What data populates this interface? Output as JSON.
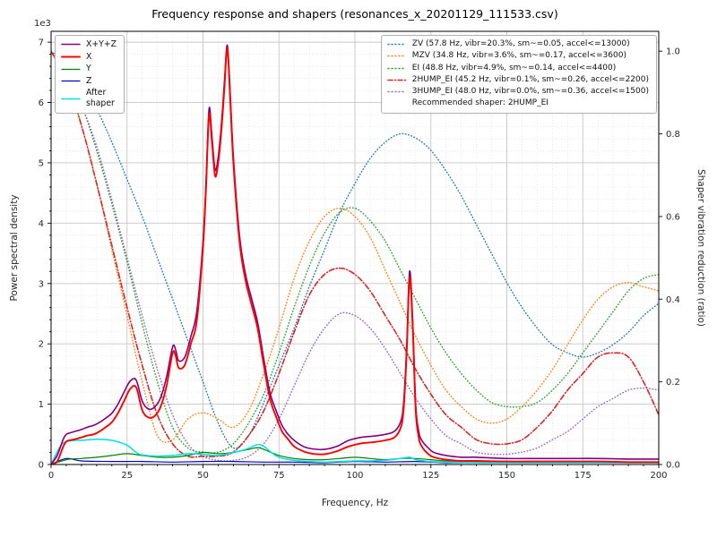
{
  "chart_data": {
    "type": "line",
    "title": "Frequency response and shapers (resonances_x_20201129_111533.csv)",
    "xlabel": "Frequency, Hz",
    "ylabel": "Power spectral density",
    "ylabel2": "Shaper vibration reduction (ratio)",
    "y_offset_text": "1e3",
    "xlim": [
      0,
      200
    ],
    "psd_top": 7.18,
    "ratio_top": 1.048,
    "x_ticks": [
      0,
      25,
      50,
      75,
      100,
      125,
      150,
      175,
      200
    ],
    "y_ticks_left": [
      0,
      1,
      2,
      3,
      4,
      5,
      6,
      7
    ],
    "y_ticks_right": [
      "0.0",
      "0.2",
      "0.4",
      "0.6",
      "0.8",
      "1.0"
    ],
    "grid": "both",
    "legend_positions": {
      "psd": "upper left",
      "shapers": "upper right"
    },
    "recommended": "Recommended shaper: 2HUMP_EI",
    "draw_order": [
      "zv",
      "mzv",
      "ei",
      "hump3",
      "hump2",
      "z",
      "y",
      "after",
      "total",
      "x"
    ],
    "series": {
      "total": {
        "label": "X+Y+Z",
        "color": "#800080",
        "style": "solid",
        "width": 1.6,
        "axis": "psd",
        "x": [
          0,
          2,
          4,
          5,
          6,
          8,
          10,
          12,
          14,
          16,
          18,
          20,
          22,
          24,
          26,
          28,
          30,
          32,
          34,
          36,
          38,
          40,
          41,
          42,
          44,
          46,
          48,
          50,
          51,
          52,
          53,
          54,
          55,
          56,
          57,
          58,
          59,
          60,
          62,
          64,
          66,
          68,
          70,
          72,
          74,
          76,
          78,
          80,
          83,
          86,
          90,
          94,
          98,
          102,
          106,
          110,
          113,
          115,
          116,
          117,
          118,
          119,
          120,
          121,
          122,
          124,
          126,
          130,
          135,
          140,
          150,
          160,
          170,
          180,
          190,
          200
        ],
        "y": [
          0,
          0.15,
          0.42,
          0.5,
          0.52,
          0.55,
          0.58,
          0.62,
          0.65,
          0.7,
          0.77,
          0.85,
          1.0,
          1.2,
          1.38,
          1.4,
          1.05,
          0.92,
          0.95,
          1.1,
          1.45,
          1.95,
          1.9,
          1.72,
          1.78,
          2.12,
          2.55,
          3.7,
          4.7,
          5.9,
          5.4,
          4.88,
          5.1,
          5.6,
          6.3,
          6.95,
          6.1,
          5.1,
          3.8,
          3.15,
          2.75,
          2.35,
          1.75,
          1.2,
          0.9,
          0.65,
          0.5,
          0.4,
          0.3,
          0.26,
          0.25,
          0.3,
          0.4,
          0.45,
          0.47,
          0.5,
          0.55,
          0.7,
          1.0,
          1.9,
          3.2,
          2.4,
          1.0,
          0.55,
          0.4,
          0.28,
          0.2,
          0.15,
          0.12,
          0.12,
          0.1,
          0.1,
          0.1,
          0.1,
          0.09,
          0.09
        ]
      },
      "x": {
        "label": "X",
        "color": "#ff0000",
        "style": "solid",
        "width": 1.9,
        "axis": "psd",
        "x": [
          0,
          2,
          4,
          5,
          6,
          8,
          10,
          12,
          14,
          16,
          18,
          20,
          22,
          24,
          26,
          28,
          30,
          32,
          34,
          36,
          38,
          40,
          41,
          42,
          44,
          46,
          48,
          50,
          51,
          52,
          53,
          54,
          55,
          56,
          57,
          58,
          59,
          60,
          62,
          64,
          66,
          68,
          70,
          72,
          74,
          76,
          78,
          80,
          83,
          86,
          90,
          94,
          98,
          102,
          106,
          110,
          113,
          115,
          116,
          117,
          118,
          119,
          120,
          121,
          122,
          124,
          126,
          130,
          135,
          140,
          150,
          160,
          170,
          180,
          190,
          200
        ],
        "y": [
          0,
          0.05,
          0.3,
          0.38,
          0.4,
          0.42,
          0.45,
          0.48,
          0.5,
          0.55,
          0.62,
          0.7,
          0.85,
          1.05,
          1.25,
          1.28,
          0.9,
          0.78,
          0.8,
          0.95,
          1.3,
          1.85,
          1.8,
          1.6,
          1.65,
          2.0,
          2.4,
          3.6,
          4.6,
          5.8,
          5.3,
          4.78,
          5.0,
          5.5,
          6.2,
          6.9,
          6.0,
          5.0,
          3.7,
          3.05,
          2.65,
          2.25,
          1.65,
          1.1,
          0.8,
          0.55,
          0.42,
          0.3,
          0.22,
          0.18,
          0.17,
          0.22,
          0.3,
          0.35,
          0.37,
          0.4,
          0.45,
          0.6,
          0.9,
          1.8,
          3.1,
          2.3,
          0.9,
          0.45,
          0.3,
          0.18,
          0.12,
          0.08,
          0.06,
          0.06,
          0.05,
          0.05,
          0.05,
          0.05,
          0.04,
          0.04
        ]
      },
      "y": {
        "label": "Y",
        "color": "#008000",
        "style": "solid",
        "width": 1.2,
        "axis": "psd",
        "x": [
          0,
          5,
          10,
          15,
          20,
          25,
          30,
          35,
          40,
          45,
          50,
          55,
          60,
          65,
          68,
          70,
          75,
          80,
          85,
          90,
          95,
          100,
          105,
          110,
          115,
          120,
          125,
          130,
          140,
          150,
          160,
          170,
          180,
          190,
          200
        ],
        "y": [
          0,
          0.08,
          0.1,
          0.12,
          0.15,
          0.18,
          0.15,
          0.12,
          0.12,
          0.15,
          0.2,
          0.18,
          0.2,
          0.25,
          0.28,
          0.25,
          0.15,
          0.1,
          0.08,
          0.08,
          0.1,
          0.12,
          0.1,
          0.08,
          0.1,
          0.1,
          0.08,
          0.06,
          0.05,
          0.05,
          0.04,
          0.04,
          0.04,
          0.03,
          0.03
        ]
      },
      "z": {
        "label": "Z",
        "color": "#0000cc",
        "style": "solid",
        "width": 1.2,
        "axis": "psd",
        "x": [
          0,
          5,
          10,
          20,
          30,
          40,
          50,
          60,
          70,
          80,
          90,
          100,
          110,
          120,
          130,
          140,
          150,
          160,
          170,
          180,
          190,
          200
        ],
        "y": [
          0,
          0.1,
          0.06,
          0.05,
          0.05,
          0.04,
          0.05,
          0.05,
          0.04,
          0.04,
          0.03,
          0.05,
          0.04,
          0.05,
          0.03,
          0.03,
          0.03,
          0.03,
          0.03,
          0.03,
          0.03,
          0.03
        ]
      },
      "after": {
        "label": "After\nshaper",
        "color": "#00e0e0",
        "style": "solid",
        "width": 1.5,
        "axis": "psd",
        "x": [
          0,
          3,
          5,
          8,
          10,
          15,
          20,
          25,
          28,
          30,
          35,
          40,
          45,
          50,
          55,
          60,
          64,
          68,
          70,
          72,
          75,
          80,
          85,
          90,
          95,
          100,
          105,
          110,
          115,
          118,
          120,
          125,
          130,
          140,
          150,
          160,
          170,
          180,
          190,
          200
        ],
        "y": [
          0,
          0.3,
          0.38,
          0.4,
          0.4,
          0.42,
          0.4,
          0.32,
          0.2,
          0.16,
          0.14,
          0.15,
          0.18,
          0.17,
          0.15,
          0.2,
          0.25,
          0.33,
          0.3,
          0.22,
          0.12,
          0.07,
          0.05,
          0.04,
          0.05,
          0.06,
          0.06,
          0.07,
          0.1,
          0.12,
          0.08,
          0.05,
          0.04,
          0.03,
          0.03,
          0.03,
          0.03,
          0.03,
          0.03,
          0.03
        ]
      },
      "zv": {
        "label": "ZV (57.8 Hz, vibr=20.3%, sm~=0.05, accel<=13000)",
        "color": "#1f77b4",
        "style": "dotted",
        "width": 1.4,
        "axis": "ratio",
        "x": [
          0,
          5,
          10,
          15,
          20,
          25,
          30,
          35,
          40,
          45,
          50,
          55,
          60,
          65,
          70,
          75,
          80,
          85,
          90,
          95,
          100,
          105,
          110,
          115,
          120,
          125,
          130,
          135,
          140,
          145,
          150,
          155,
          160,
          165,
          170,
          175,
          180,
          185,
          190,
          195,
          200
        ],
        "y": [
          1.0,
          0.97,
          0.92,
          0.86,
          0.78,
          0.69,
          0.6,
          0.5,
          0.4,
          0.3,
          0.2,
          0.1,
          0.04,
          0.07,
          0.15,
          0.24,
          0.33,
          0.43,
          0.52,
          0.61,
          0.68,
          0.74,
          0.78,
          0.8,
          0.79,
          0.76,
          0.71,
          0.65,
          0.58,
          0.51,
          0.44,
          0.38,
          0.33,
          0.29,
          0.27,
          0.26,
          0.27,
          0.29,
          0.32,
          0.36,
          0.39
        ]
      },
      "mzv": {
        "label": "MZV (34.8 Hz, vibr=3.6%, sm~=0.17, accel<=3600)",
        "color": "#ff7f0e",
        "style": "dotted",
        "width": 1.4,
        "axis": "ratio",
        "x": [
          0,
          5,
          10,
          15,
          20,
          25,
          30,
          35,
          40,
          45,
          50,
          55,
          60,
          65,
          70,
          75,
          80,
          85,
          90,
          95,
          100,
          105,
          110,
          115,
          120,
          125,
          130,
          135,
          140,
          145,
          150,
          155,
          160,
          165,
          170,
          175,
          180,
          185,
          190,
          195,
          200
        ],
        "y": [
          1.0,
          0.93,
          0.82,
          0.68,
          0.52,
          0.36,
          0.2,
          0.07,
          0.06,
          0.11,
          0.125,
          0.11,
          0.09,
          0.13,
          0.22,
          0.33,
          0.45,
          0.54,
          0.6,
          0.62,
          0.6,
          0.55,
          0.47,
          0.39,
          0.31,
          0.24,
          0.18,
          0.14,
          0.11,
          0.1,
          0.11,
          0.14,
          0.18,
          0.23,
          0.29,
          0.35,
          0.4,
          0.43,
          0.44,
          0.43,
          0.42
        ]
      },
      "ei": {
        "label": "EI (48.8 Hz, vibr=4.9%, sm~=0.14, accel<=4400)",
        "color": "#2ca02c",
        "style": "dotted",
        "width": 1.4,
        "axis": "ratio",
        "x": [
          0,
          5,
          10,
          15,
          20,
          25,
          30,
          35,
          40,
          45,
          50,
          55,
          60,
          65,
          70,
          75,
          80,
          85,
          90,
          95,
          100,
          105,
          110,
          115,
          120,
          125,
          130,
          135,
          140,
          145,
          150,
          155,
          160,
          165,
          170,
          175,
          180,
          185,
          190,
          195,
          200
        ],
        "y": [
          1.0,
          0.95,
          0.87,
          0.76,
          0.63,
          0.49,
          0.34,
          0.2,
          0.09,
          0.04,
          0.03,
          0.03,
          0.05,
          0.1,
          0.17,
          0.27,
          0.38,
          0.48,
          0.56,
          0.61,
          0.62,
          0.59,
          0.54,
          0.47,
          0.4,
          0.33,
          0.27,
          0.22,
          0.18,
          0.15,
          0.14,
          0.14,
          0.15,
          0.18,
          0.22,
          0.27,
          0.32,
          0.37,
          0.42,
          0.45,
          0.46
        ]
      },
      "hump2": {
        "label": "2HUMP_EI (45.2 Hz, vibr=0.1%, sm~=0.26, accel<=2200)",
        "color": "#d62728",
        "style": "dashdot",
        "width": 1.6,
        "axis": "ratio",
        "x": [
          0,
          5,
          10,
          15,
          20,
          25,
          30,
          35,
          40,
          45,
          50,
          55,
          60,
          65,
          70,
          75,
          80,
          85,
          90,
          95,
          100,
          105,
          110,
          115,
          120,
          125,
          130,
          135,
          140,
          145,
          150,
          155,
          160,
          165,
          170,
          175,
          180,
          185,
          190,
          195,
          200
        ],
        "y": [
          1.0,
          0.93,
          0.82,
          0.68,
          0.53,
          0.38,
          0.24,
          0.12,
          0.05,
          0.02,
          0.02,
          0.02,
          0.03,
          0.07,
          0.13,
          0.22,
          0.32,
          0.41,
          0.46,
          0.475,
          0.46,
          0.42,
          0.36,
          0.3,
          0.23,
          0.17,
          0.12,
          0.09,
          0.06,
          0.05,
          0.05,
          0.06,
          0.09,
          0.13,
          0.18,
          0.22,
          0.26,
          0.27,
          0.26,
          0.2,
          0.12
        ]
      },
      "hump3": {
        "label": "3HUMP_EI (48.0 Hz, vibr=0.0%, sm~=0.36, accel<=1500)",
        "color": "#9467bd",
        "style": "dotted",
        "width": 1.4,
        "axis": "ratio",
        "x": [
          0,
          5,
          10,
          15,
          20,
          25,
          30,
          35,
          40,
          45,
          50,
          55,
          60,
          65,
          70,
          75,
          80,
          85,
          90,
          95,
          100,
          105,
          110,
          115,
          120,
          125,
          130,
          135,
          140,
          145,
          150,
          155,
          160,
          165,
          170,
          175,
          180,
          185,
          190,
          195,
          200
        ],
        "y": [
          1.0,
          0.95,
          0.87,
          0.77,
          0.64,
          0.5,
          0.36,
          0.23,
          0.12,
          0.05,
          0.02,
          0.01,
          0.01,
          0.02,
          0.05,
          0.11,
          0.19,
          0.27,
          0.33,
          0.365,
          0.36,
          0.33,
          0.28,
          0.22,
          0.16,
          0.11,
          0.07,
          0.05,
          0.03,
          0.025,
          0.025,
          0.03,
          0.04,
          0.06,
          0.08,
          0.11,
          0.14,
          0.16,
          0.18,
          0.185,
          0.18
        ]
      }
    }
  }
}
